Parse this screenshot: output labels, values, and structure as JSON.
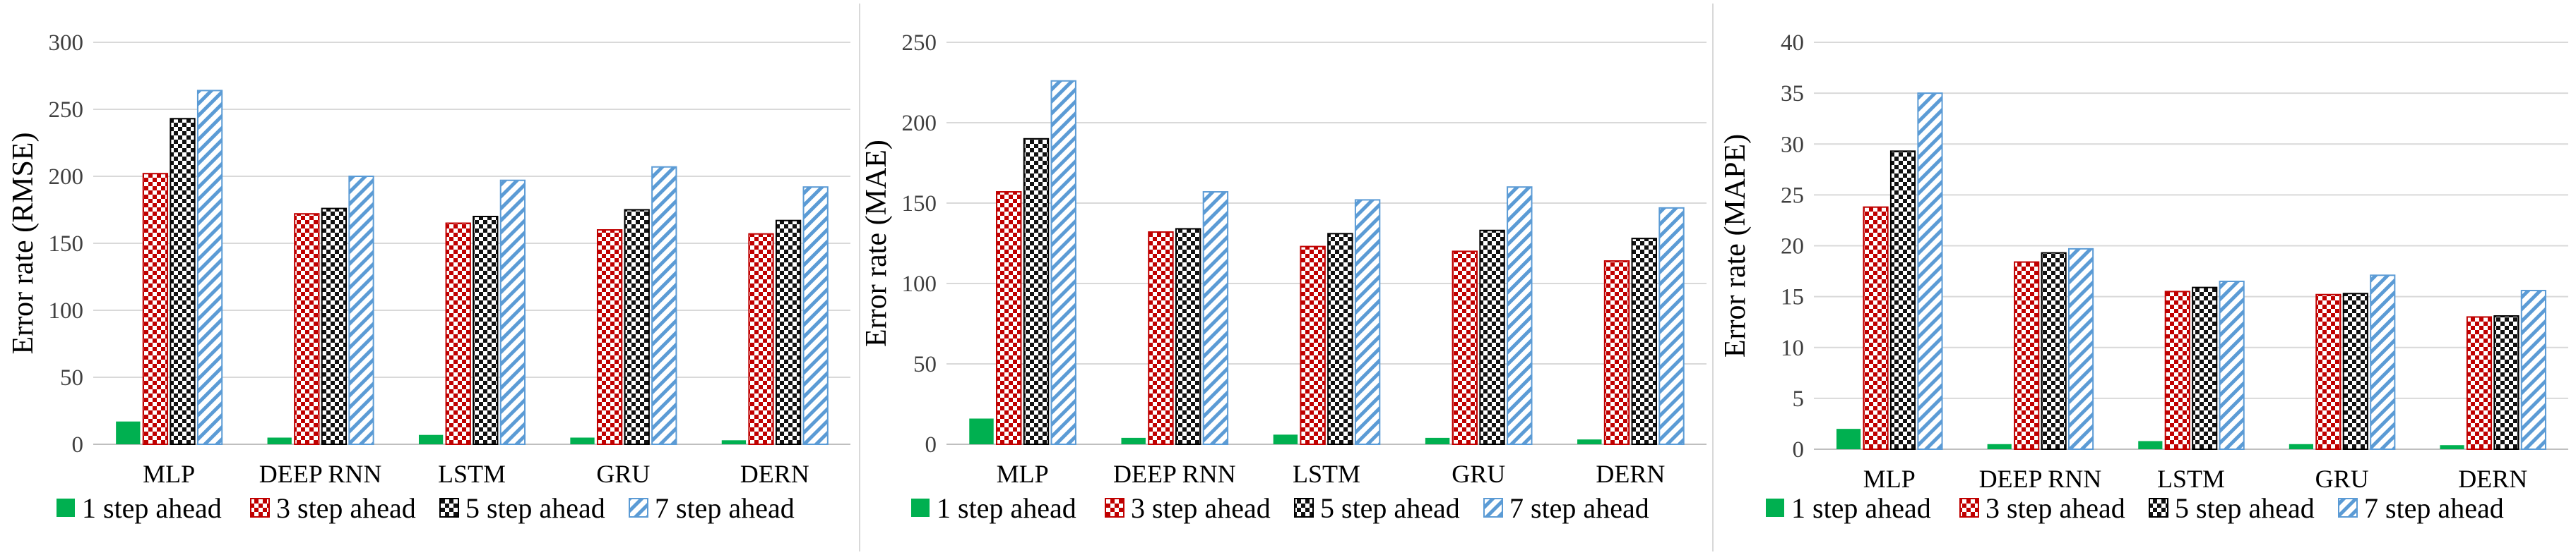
{
  "legend_entries": [
    "1 step ahead",
    "3 step ahead",
    "5 step ahead",
    "7 step ahead"
  ],
  "series_styles": [
    {
      "fill": "solid",
      "color": "#00b050"
    },
    {
      "fill": "checker",
      "color": "#c00000"
    },
    {
      "fill": "checker",
      "color": "#000000"
    },
    {
      "fill": "diagonal-stripes",
      "color": "#5b9bd5"
    }
  ],
  "chart_data": [
    {
      "type": "bar",
      "categories": [
        "MLP",
        "DEEP RNN",
        "LSTM",
        "GRU",
        "DERN"
      ],
      "ylabel": "Error rate (RMSE)",
      "ylim": [
        0,
        300
      ],
      "yticks": [
        0,
        50,
        100,
        150,
        200,
        250,
        300
      ],
      "grid": true,
      "legend": "bottom",
      "series": [
        {
          "name": "1 step ahead",
          "values": [
            17,
            5,
            7,
            5,
            3
          ]
        },
        {
          "name": "3 step ahead",
          "values": [
            202,
            172,
            165,
            160,
            157
          ]
        },
        {
          "name": "5 step ahead",
          "values": [
            243,
            176,
            170,
            175,
            167
          ]
        },
        {
          "name": "7 step ahead",
          "values": [
            264,
            200,
            197,
            207,
            192
          ]
        }
      ]
    },
    {
      "type": "bar",
      "categories": [
        "MLP",
        "DEEP RNN",
        "LSTM",
        "GRU",
        "DERN"
      ],
      "ylabel": "Error rate (MAE)",
      "ylim": [
        0,
        250
      ],
      "yticks": [
        0,
        50,
        100,
        150,
        200,
        250
      ],
      "grid": true,
      "legend": "bottom",
      "series": [
        {
          "name": "1 step ahead",
          "values": [
            16,
            4,
            6,
            4,
            3
          ]
        },
        {
          "name": "3 step ahead",
          "values": [
            157,
            132,
            123,
            120,
            114
          ]
        },
        {
          "name": "5 step ahead",
          "values": [
            190,
            134,
            131,
            133,
            128
          ]
        },
        {
          "name": "7 step ahead",
          "values": [
            226,
            157,
            152,
            160,
            147
          ]
        }
      ]
    },
    {
      "type": "bar",
      "categories": [
        "MLP",
        "DEEP RNN",
        "LSTM",
        "GRU",
        "DERN"
      ],
      "ylabel": "Error rate (MAPE)",
      "ylim": [
        0,
        40
      ],
      "yticks": [
        0,
        5,
        10,
        15,
        20,
        25,
        30,
        35,
        40
      ],
      "grid": true,
      "legend": "bottom",
      "series": [
        {
          "name": "1 step ahead",
          "values": [
            2,
            0.5,
            0.8,
            0.5,
            0.4
          ]
        },
        {
          "name": "3 step ahead",
          "values": [
            23.8,
            18.4,
            15.5,
            15.2,
            13.0
          ]
        },
        {
          "name": "5 step ahead",
          "values": [
            29.3,
            19.3,
            15.9,
            15.3,
            13.1
          ]
        },
        {
          "name": "7 step ahead",
          "values": [
            35.0,
            19.7,
            16.5,
            17.1,
            15.6
          ]
        }
      ]
    }
  ]
}
